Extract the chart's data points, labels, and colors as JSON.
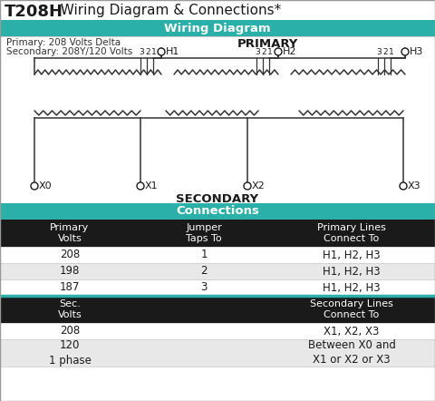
{
  "title_bold": "T208H",
  "title_rest": "  Wiring Diagram & Connections*",
  "teal_color": "#2ab0a8",
  "black_color": "#1a1a1a",
  "white_color": "#ffffff",
  "light_gray": "#e8e8e8",
  "mid_gray": "#cccccc",
  "dark_gray": "#555555",
  "wiring_section_title": "Wiring Diagram",
  "connections_section_title": "Connections",
  "primary_label": "PRIMARY",
  "secondary_label": "SECONDARY",
  "primary_info_line1": "Primary: 208 Volts Delta",
  "primary_info_line2": "Secondary: 208Y/120 Volts",
  "h_labels": [
    "H1",
    "H2",
    "H3"
  ],
  "x_labels": [
    "X0",
    "X1",
    "X2",
    "X3"
  ],
  "table_header1": [
    "Primary\nVolts",
    "Jumper\nTaps To",
    "Primary Lines\nConnect To"
  ],
  "table_rows1": [
    [
      "208",
      "1",
      "H1, H2, H3"
    ],
    [
      "198",
      "2",
      "H1, H2, H3"
    ],
    [
      "187",
      "3",
      "H1, H2, H3"
    ]
  ],
  "table_header2": [
    "Sec.\nVolts",
    "",
    "Secondary Lines\nConnect To"
  ],
  "table_rows2": [
    [
      "208",
      "",
      "X1, X2, X3"
    ],
    [
      "120\n1 phase",
      "",
      "Between X0 and\nX1 or X2 or X3"
    ]
  ],
  "coil_color": "#333333",
  "wire_color": "#333333"
}
